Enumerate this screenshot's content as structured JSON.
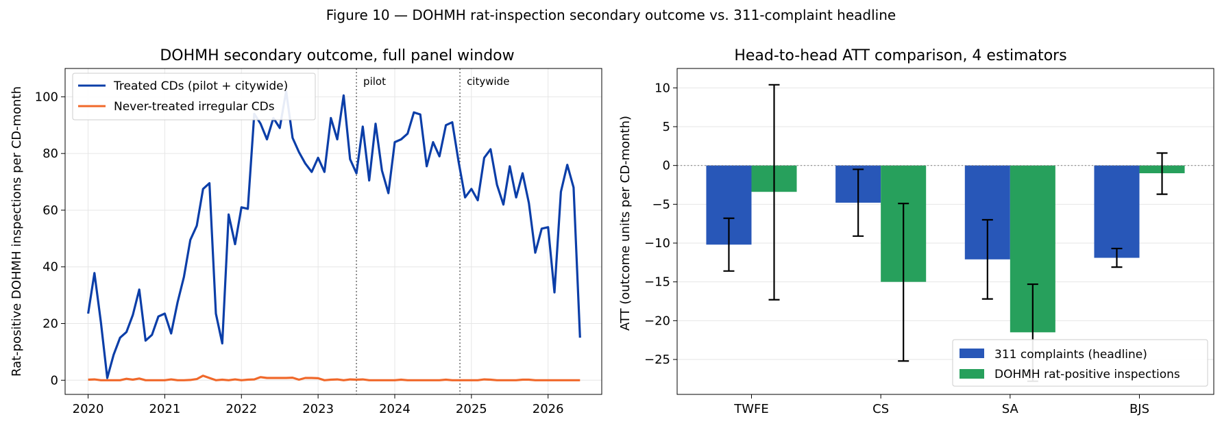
{
  "figure": {
    "suptitle": "Figure 10 — DOHMH rat-inspection secondary outcome vs. 311-complaint headline"
  },
  "colors": {
    "treated": "#0b3ea8",
    "never": "#f0682a",
    "headline": "#2857b8",
    "dohmh": "#27a05c",
    "grid": "#e6e6e6"
  },
  "chart_data": [
    {
      "type": "line",
      "title": "DOHMH secondary outcome, full panel window",
      "xlabel": "",
      "ylabel": "Rat-positive DOHMH inspections per CD-month",
      "xlim": [
        2019.7,
        2026.7
      ],
      "ylim": [
        -5,
        110
      ],
      "xticks": [
        2020,
        2021,
        2022,
        2023,
        2024,
        2025,
        2026
      ],
      "yticks": [
        0,
        20,
        40,
        60,
        80,
        100
      ],
      "grid": true,
      "legend": "upper-left",
      "vlines": [
        {
          "x": 2023.5,
          "label": "pilot"
        },
        {
          "x": 2024.85,
          "label": "citywide"
        }
      ],
      "series": [
        {
          "name": "Treated CDs (pilot + citywide)",
          "x": [
            2020.0,
            2020.083,
            2020.167,
            2020.25,
            2020.333,
            2020.417,
            2020.5,
            2020.583,
            2020.667,
            2020.75,
            2020.833,
            2020.917,
            2021.0,
            2021.083,
            2021.167,
            2021.25,
            2021.333,
            2021.417,
            2021.5,
            2021.583,
            2021.667,
            2021.75,
            2021.833,
            2021.917,
            2022.0,
            2022.083,
            2022.167,
            2022.25,
            2022.333,
            2022.417,
            2022.5,
            2022.583,
            2022.667,
            2022.75,
            2022.833,
            2022.917,
            2023.0,
            2023.083,
            2023.167,
            2023.25,
            2023.333,
            2023.417,
            2023.5,
            2023.583,
            2023.667,
            2023.75,
            2023.833,
            2023.917,
            2024.0,
            2024.083,
            2024.167,
            2024.25,
            2024.333,
            2024.417,
            2024.5,
            2024.583,
            2024.667,
            2024.75,
            2024.833,
            2024.917,
            2025.0,
            2025.083,
            2025.167,
            2025.25,
            2025.333,
            2025.417,
            2025.5,
            2025.583,
            2025.667,
            2025.75,
            2025.833,
            2025.917,
            2026.0,
            2026.083,
            2026.167,
            2026.25,
            2026.333,
            2026.417
          ],
          "values": [
            23.5,
            37.8,
            20.5,
            0.8,
            9,
            15,
            17,
            23,
            32,
            14,
            16,
            22.5,
            23.5,
            16.5,
            27.5,
            36.5,
            49.5,
            54.5,
            67.5,
            69.5,
            23.5,
            13,
            58.5,
            48,
            61,
            60.5,
            94,
            90.5,
            85,
            92.5,
            89,
            102,
            85.5,
            80.5,
            76.5,
            73.5,
            78.5,
            73.5,
            92.5,
            85,
            100.5,
            78,
            73,
            89.5,
            70.5,
            90.5,
            74,
            66,
            84,
            85,
            87,
            94.5,
            93.8,
            75.5,
            84,
            79,
            90,
            91,
            77,
            64.5,
            67.5,
            63.5,
            78.5,
            81.5,
            69,
            62,
            75.5,
            64.5,
            73,
            62.5,
            45,
            53.5,
            54,
            31,
            66.5,
            76,
            68,
            15
          ]
        },
        {
          "name": "Never-treated irregular CDs",
          "x": [
            2020.0,
            2020.083,
            2020.167,
            2020.25,
            2020.333,
            2020.417,
            2020.5,
            2020.583,
            2020.667,
            2020.75,
            2020.833,
            2020.917,
            2021.0,
            2021.083,
            2021.167,
            2021.25,
            2021.333,
            2021.417,
            2021.5,
            2021.583,
            2021.667,
            2021.75,
            2021.833,
            2021.917,
            2022.0,
            2022.083,
            2022.167,
            2022.25,
            2022.333,
            2022.417,
            2022.5,
            2022.583,
            2022.667,
            2022.75,
            2022.833,
            2022.917,
            2023.0,
            2023.083,
            2023.167,
            2023.25,
            2023.333,
            2023.417,
            2023.5,
            2023.583,
            2023.667,
            2023.75,
            2023.833,
            2023.917,
            2024.0,
            2024.083,
            2024.167,
            2024.25,
            2024.333,
            2024.417,
            2024.5,
            2024.583,
            2024.667,
            2024.75,
            2024.833,
            2024.917,
            2025.0,
            2025.083,
            2025.167,
            2025.25,
            2025.333,
            2025.417,
            2025.5,
            2025.583,
            2025.667,
            2025.75,
            2025.833,
            2025.917,
            2026.0,
            2026.083,
            2026.167,
            2026.25,
            2026.333,
            2026.417
          ],
          "values": [
            0.2,
            0.3,
            0,
            0,
            0,
            0,
            0.5,
            0.2,
            0.6,
            0,
            0,
            0,
            0,
            0.3,
            0,
            0,
            0.1,
            0.4,
            1.6,
            0.8,
            0,
            0.2,
            0,
            0.3,
            0,
            0.2,
            0.3,
            1.1,
            0.8,
            0.8,
            0.8,
            0.8,
            0.9,
            0.2,
            0.8,
            0.8,
            0.7,
            0,
            0.2,
            0.3,
            0,
            0.3,
            0.2,
            0.3,
            0,
            0,
            0,
            0,
            0,
            0.2,
            0,
            0,
            0,
            0,
            0,
            0,
            0.2,
            0,
            0,
            0,
            0,
            0,
            0.3,
            0.2,
            0,
            0,
            0,
            0,
            0.2,
            0.2,
            0,
            0,
            0,
            0,
            0,
            0,
            0,
            0
          ]
        }
      ]
    },
    {
      "type": "bar",
      "title": "Head-to-head ATT comparison, 4 estimators",
      "xlabel": "",
      "ylabel": "ATT (outcome units per CD-month)",
      "ylim": [
        -29.5,
        12.5
      ],
      "yticks": [
        10,
        5,
        0,
        -5,
        -10,
        -15,
        -20,
        -25
      ],
      "grid": true,
      "legend": "lower-right",
      "categories": [
        "TWFE",
        "CS",
        "SA",
        "BJS"
      ],
      "series": [
        {
          "name": "311 complaints (headline)",
          "values": [
            -10.2,
            -4.8,
            -12.1,
            -11.9
          ],
          "ci_low": [
            -13.6,
            -9.1,
            -17.2,
            -13.1
          ],
          "ci_high": [
            -6.8,
            -0.5,
            -7.0,
            -10.7
          ]
        },
        {
          "name": "DOHMH rat-positive inspections",
          "values": [
            -3.4,
            -15.0,
            -21.5,
            -1.0
          ],
          "ci_low": [
            -17.3,
            -25.2,
            -27.8,
            -3.7
          ],
          "ci_high": [
            10.4,
            -4.9,
            -15.3,
            1.6
          ]
        }
      ]
    }
  ]
}
